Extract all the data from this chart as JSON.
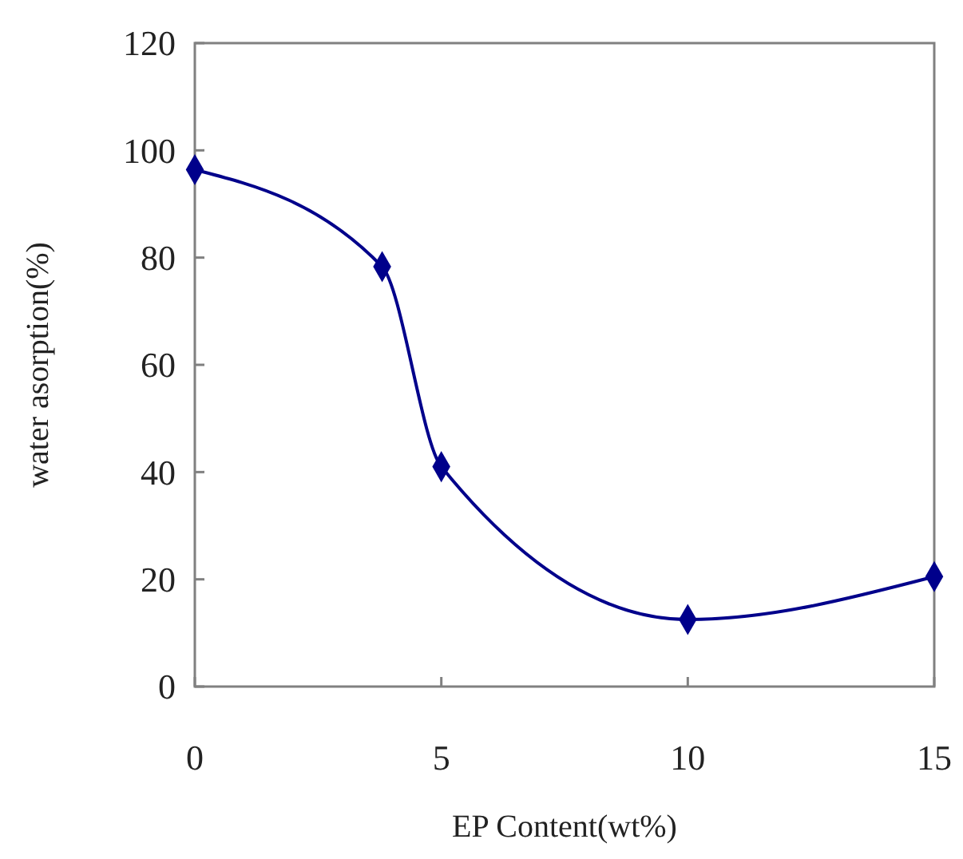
{
  "chart_data": {
    "type": "line",
    "xlabel": "EP Content(wt%)",
    "ylabel": "water asorption(%)",
    "x": [
      0,
      3.8,
      5,
      10,
      15
    ],
    "series": [
      {
        "color": "#00008b",
        "values": [
          96.4,
          78.3,
          41,
          12.5,
          20.5
        ]
      }
    ],
    "xlim": [
      0,
      15
    ],
    "xticks": [
      0,
      5,
      10,
      15
    ],
    "ylim": [
      0,
      120
    ],
    "yticks": [
      0,
      20,
      40,
      60,
      80,
      100,
      120
    ],
    "grid": false,
    "marker": "diamond",
    "line_style": "solid"
  }
}
